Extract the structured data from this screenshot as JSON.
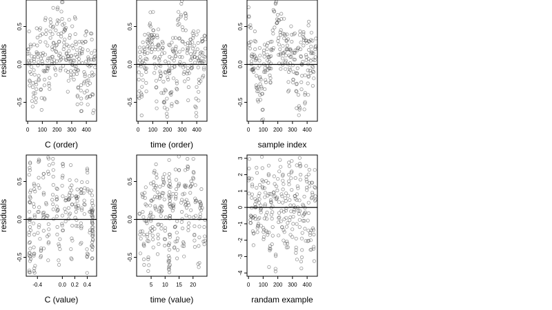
{
  "chart_data": [
    {
      "type": "scatter",
      "title": "",
      "xlabel": "C (order)",
      "ylabel": "residuals",
      "xlim": [
        -10,
        470
      ],
      "ylim": [
        -0.75,
        0.85
      ],
      "xticks": [
        0,
        100,
        200,
        300,
        400
      ],
      "xtick_labels": [
        "0",
        "100",
        "200",
        "300",
        "400"
      ],
      "yticks": [
        -0.5,
        0,
        0.5
      ],
      "ytick_labels": [
        "-0.5",
        "0.0",
        "0.5"
      ],
      "hline": 0,
      "x": [
        5,
        15,
        25,
        35,
        45,
        55,
        65,
        75,
        85,
        95,
        105,
        115,
        125,
        135,
        145,
        155,
        165,
        175,
        185,
        195,
        205,
        215,
        225,
        235,
        245,
        255,
        265,
        275,
        285,
        295,
        305,
        315,
        325,
        335,
        345,
        355,
        365,
        375,
        385,
        395,
        405,
        415,
        425,
        435,
        445,
        455
      ],
      "y": [
        0.2,
        -0.1,
        0.05,
        -0.3,
        0.1,
        -0.5,
        0.25,
        -0.15,
        0.3,
        -0.6,
        0.15,
        -0.2,
        0.4,
        0.05,
        -0.25,
        0.35,
        0.1,
        0.5,
        -0.05,
        0.25,
        0.75,
        0.3,
        0.1,
        0.6,
        0.2,
        0.45,
        0.15,
        -0.1,
        0.35,
        0.05,
        0.25,
        -0.2,
        0.4,
        0.1,
        -0.3,
        0.15,
        -0.45,
        0.2,
        -0.1,
        0.3,
        -0.35,
        0.05,
        -0.25,
        0.15,
        -0.4,
        0.1
      ]
    },
    {
      "type": "scatter",
      "title": "",
      "xlabel": "time (order)",
      "ylabel": "residuals",
      "xlim": [
        -10,
        470
      ],
      "ylim": [
        -0.75,
        0.85
      ],
      "xticks": [
        0,
        100,
        200,
        300,
        400
      ],
      "xtick_labels": [
        "0",
        "100",
        "200",
        "300",
        "400"
      ],
      "yticks": [
        -0.5,
        0,
        0.5
      ],
      "ytick_labels": [
        "-0.5",
        "0.0",
        "0.5"
      ],
      "hline": 0,
      "x": [
        5,
        15,
        25,
        35,
        45,
        55,
        65,
        75,
        85,
        95,
        105,
        115,
        125,
        135,
        145,
        155,
        165,
        175,
        185,
        195,
        205,
        215,
        225,
        235,
        245,
        255,
        265,
        275,
        285,
        295,
        305,
        315,
        325,
        335,
        345,
        355,
        365,
        375,
        385,
        395,
        405,
        415,
        425,
        435,
        445,
        455
      ],
      "y": [
        -0.2,
        0.1,
        -0.4,
        0.05,
        0.2,
        -0.1,
        0.15,
        0.35,
        0.5,
        0.2,
        0.45,
        0.1,
        -0.3,
        0.25,
        0.05,
        -0.15,
        0.3,
        -0.5,
        -0.1,
        -0.65,
        -0.2,
        0.1,
        -0.4,
        0.2,
        0.05,
        0.35,
        -0.25,
        0.6,
        0.1,
        0.8,
        0.3,
        -0.1,
        0.45,
        0.15,
        -0.3,
        0.25,
        -0.05,
        0.35,
        0.1,
        -0.45,
        0.2,
        -0.2,
        0.05,
        0.3,
        -0.15,
        0.1
      ]
    },
    {
      "type": "scatter",
      "title": "",
      "xlabel": "sample index",
      "ylabel": "residuals",
      "xlim": [
        -10,
        470
      ],
      "ylim": [
        -0.75,
        0.85
      ],
      "xticks": [
        0,
        100,
        200,
        300,
        400
      ],
      "xtick_labels": [
        "0",
        "100",
        "200",
        "300",
        "400"
      ],
      "yticks": [
        -0.5,
        0,
        0.5
      ],
      "ytick_labels": [
        "-0.5",
        "0.0",
        "0.5"
      ],
      "hline": 0,
      "x": [
        5,
        15,
        25,
        35,
        45,
        55,
        65,
        75,
        85,
        95,
        105,
        115,
        125,
        135,
        145,
        155,
        165,
        175,
        185,
        195,
        205,
        215,
        225,
        235,
        245,
        255,
        265,
        275,
        285,
        295,
        305,
        315,
        325,
        335,
        345,
        355,
        365,
        375,
        385,
        395,
        405,
        415,
        425,
        435,
        445,
        455
      ],
      "y": [
        0.5,
        0.3,
        0.1,
        -0.1,
        0.2,
        -0.15,
        -0.3,
        0.05,
        -0.2,
        -0.6,
        0.15,
        -0.1,
        0.25,
        0.1,
        -0.05,
        0.2,
        0.45,
        0.7,
        0.8,
        0.55,
        0.35,
        0.2,
        0.6,
        0.15,
        0.4,
        0.05,
        0.25,
        -0.1,
        0.1,
        0.3,
        -0.2,
        0.15,
        -0.35,
        -0.05,
        -0.55,
        0.2,
        -0.15,
        0.25,
        -0.4,
        0.1,
        -0.25,
        0.3,
        0.05,
        0.15,
        -0.1,
        0.2
      ]
    },
    {
      "type": "scatter",
      "title": "",
      "xlabel": "C (value)",
      "ylabel": "residuals",
      "xlim": [
        -0.58,
        0.55
      ],
      "ylim": [
        -0.75,
        0.85
      ],
      "xticks": [
        -0.4,
        0.0,
        0.2,
        0.4
      ],
      "xtick_labels": [
        "-0.4",
        "0.0",
        "0.2",
        "0.4"
      ],
      "yticks": [
        -0.5,
        0,
        0.5
      ],
      "ytick_labels": [
        "-0.5",
        "0.0",
        "0.5"
      ],
      "hline": 0,
      "x": [
        -0.52,
        -0.52,
        -0.52,
        -0.52,
        -0.52,
        -0.52,
        -0.45,
        -0.45,
        -0.45,
        -0.38,
        -0.38,
        -0.3,
        -0.3,
        -0.22,
        -0.22,
        -0.15,
        -0.15,
        -0.08,
        -0.08,
        0.0,
        0.0,
        0.05,
        0.1,
        0.15,
        0.15,
        0.22,
        0.22,
        0.3,
        0.3,
        0.35,
        0.4,
        0.4,
        0.45,
        0.48,
        0.48,
        0.48,
        0.48,
        0.48,
        0.48,
        -0.25,
        -0.05,
        0.25,
        -0.35,
        0.12
      ],
      "y": [
        0.65,
        0.3,
        -0.1,
        -0.3,
        -0.55,
        -0.7,
        0.4,
        -0.2,
        -0.45,
        0.55,
        0.1,
        0.35,
        -0.15,
        0.6,
        -0.3,
        0.8,
        0.2,
        0.4,
        -0.1,
        0.55,
        0.05,
        0.25,
        0.15,
        0.45,
        -0.25,
        0.1,
        0.3,
        0.4,
        -0.05,
        0.2,
        0.65,
        -0.45,
        0.1,
        0.25,
        0.1,
        -0.05,
        -0.15,
        -0.3,
        -0.4,
        0.05,
        -0.35,
        0.15,
        -0.5,
        0.35
      ]
    },
    {
      "type": "scatter",
      "title": "",
      "xlabel": "time (value)",
      "ylabel": "residuals",
      "xlim": [
        -0.2,
        25
      ],
      "ylim": [
        -0.75,
        0.85
      ],
      "xticks": [
        5,
        10,
        15,
        20
      ],
      "xtick_labels": [
        "5",
        "10",
        "15",
        "20"
      ],
      "yticks": [
        -0.5,
        0,
        0.5
      ],
      "ytick_labels": [
        "-0.5",
        "0.0",
        "0.5"
      ],
      "hline": 0,
      "x": [
        1,
        2,
        2.5,
        3,
        4,
        4.5,
        5,
        5.5,
        6,
        6.5,
        7,
        7.5,
        8,
        8.5,
        9,
        10,
        11.5,
        11.5,
        11.5,
        11.5,
        11.5,
        11.5,
        12,
        13,
        13.5,
        14,
        15,
        16,
        16.5,
        17,
        17.5,
        18,
        18.5,
        19,
        20,
        20.5,
        21,
        22,
        22.5,
        23,
        24,
        14.5,
        9.5,
        3.5
      ],
      "y": [
        -0.2,
        0.1,
        -0.35,
        0.2,
        -0.5,
        0.05,
        0.25,
        -0.1,
        0.45,
        0.15,
        0.55,
        -0.25,
        0.3,
        0.1,
        0.35,
        -0.15,
        0.6,
        0.2,
        -0.2,
        -0.4,
        -0.55,
        -0.7,
        0.3,
        0.15,
        -0.1,
        0.4,
        0.65,
        0.1,
        -0.3,
        0.45,
        0.2,
        0.8,
        -0.05,
        0.35,
        0.55,
        -0.2,
        0.25,
        -0.35,
        0.15,
        0.4,
        -0.1,
        -0.25,
        0.5,
        -0.05
      ]
    },
    {
      "type": "scatter",
      "title": "",
      "xlabel": "randam example",
      "ylabel": "residuals",
      "xlim": [
        -10,
        470
      ],
      "ylim": [
        -4.2,
        3.2
      ],
      "xticks": [
        0,
        100,
        200,
        300,
        400
      ],
      "xtick_labels": [
        "0",
        "100",
        "200",
        "300",
        "400"
      ],
      "yticks": [
        -4,
        -3,
        -2,
        -1,
        0,
        1,
        2,
        3
      ],
      "ytick_labels": [
        "-4",
        "-3",
        "-2",
        "-1",
        "0",
        "1",
        "2",
        "3"
      ],
      "hline": 0,
      "x": [
        5,
        15,
        25,
        35,
        45,
        55,
        65,
        75,
        85,
        95,
        105,
        115,
        125,
        135,
        145,
        155,
        165,
        175,
        185,
        195,
        205,
        215,
        225,
        235,
        245,
        255,
        265,
        275,
        285,
        295,
        305,
        315,
        325,
        335,
        345,
        355,
        365,
        375,
        385,
        395,
        405,
        415,
        425,
        435,
        445,
        455
      ],
      "y": [
        1.8,
        -0.5,
        0.8,
        -1.6,
        0.2,
        1.2,
        -1.1,
        0.5,
        -0.3,
        2.4,
        -1.8,
        0.9,
        -0.7,
        1.5,
        -2.5,
        0.3,
        -1.2,
        1.9,
        -3.9,
        0.6,
        -0.9,
        2.9,
        -0.2,
        1.1,
        -1.5,
        0.4,
        -2.2,
        1.6,
        -0.6,
        2.2,
        -1.0,
        0.7,
        -1.9,
        1.3,
        -0.4,
        2.0,
        -2.6,
        0.1,
        -1.3,
        1.7,
        -0.8,
        2.3,
        -2.0,
        0.9,
        -2.4,
        1.2
      ]
    }
  ]
}
